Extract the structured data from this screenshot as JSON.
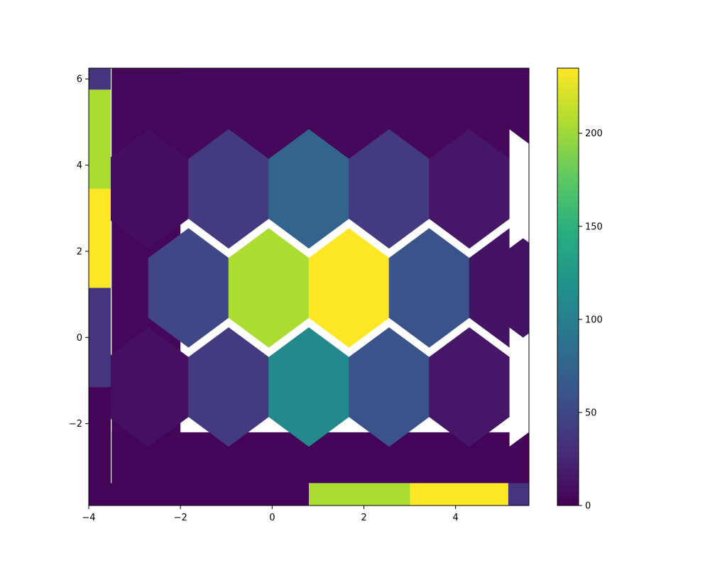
{
  "chart_data": {
    "type": "heatmap",
    "subtype": "hexbin",
    "title": "",
    "xlabel": "",
    "ylabel": "",
    "xlim": [
      -4,
      5.6
    ],
    "ylim": [
      -3.9,
      6.25
    ],
    "x_ticks": [
      -4,
      -2,
      0,
      2,
      4
    ],
    "x_tick_labels": [
      "−4",
      "−2",
      "0",
      "2",
      "4"
    ],
    "y_ticks": [
      -2,
      0,
      2,
      4,
      6
    ],
    "y_tick_labels": [
      "−2",
      "0",
      "2",
      "4",
      "6"
    ],
    "colormap": "viridis",
    "colorbar": {
      "range": [
        0,
        235
      ],
      "ticks": [
        0,
        50,
        100,
        150,
        200
      ],
      "tick_labels": [
        "0",
        "50",
        "100",
        "150",
        "200"
      ]
    },
    "hexagons": [
      {
        "x": -2.7,
        "y": 3.45,
        "count": 8
      },
      {
        "x": -0.95,
        "y": 3.45,
        "count": 40
      },
      {
        "x": 0.8,
        "y": 3.45,
        "count": 75
      },
      {
        "x": 2.55,
        "y": 3.45,
        "count": 40
      },
      {
        "x": 4.3,
        "y": 3.45,
        "count": 15
      },
      {
        "x": -1.825,
        "y": 1.15,
        "count": 50
      },
      {
        "x": -0.075,
        "y": 1.15,
        "count": 205
      },
      {
        "x": 1.675,
        "y": 1.15,
        "count": 235
      },
      {
        "x": 3.425,
        "y": 1.15,
        "count": 60
      },
      {
        "x": 5.175,
        "y": 1.15,
        "count": 12
      },
      {
        "x": -2.7,
        "y": -1.15,
        "count": 10
      },
      {
        "x": -0.95,
        "y": -1.15,
        "count": 40
      },
      {
        "x": 0.8,
        "y": -1.15,
        "count": 110
      },
      {
        "x": 2.55,
        "y": -1.15,
        "count": 60
      },
      {
        "x": 4.3,
        "y": -1.15,
        "count": 15
      }
    ],
    "background_regions": [
      {
        "x_range": [
          -3.5,
          5.6
        ],
        "y_range": [
          4.0,
          6.25
        ],
        "count": 5
      },
      {
        "x_range": [
          -3.5,
          -2.0
        ],
        "y_range": [
          -3.9,
          6.25
        ],
        "count": 4
      },
      {
        "x_range": [
          -3.5,
          5.6
        ],
        "y_range": [
          -3.9,
          -2.2
        ],
        "count": 3
      }
    ],
    "marginal_x": [
      {
        "x_range": [
          -4.0,
          0.8
        ],
        "count": 2
      },
      {
        "x_range": [
          0.8,
          3.0
        ],
        "count": 205
      },
      {
        "x_range": [
          3.0,
          5.15
        ],
        "count": 235
      },
      {
        "x_range": [
          5.15,
          5.6
        ],
        "count": 35
      }
    ],
    "marginal_y": [
      {
        "y_range": [
          5.75,
          6.25
        ],
        "count": 35
      },
      {
        "y_range": [
          3.45,
          5.75
        ],
        "count": 205
      },
      {
        "y_range": [
          1.15,
          3.45
        ],
        "count": 235
      },
      {
        "y_range": [
          -1.15,
          1.15
        ],
        "count": 35
      },
      {
        "y_range": [
          -3.9,
          -1.15
        ],
        "count": 2
      }
    ],
    "grid": false,
    "legend": "none"
  }
}
